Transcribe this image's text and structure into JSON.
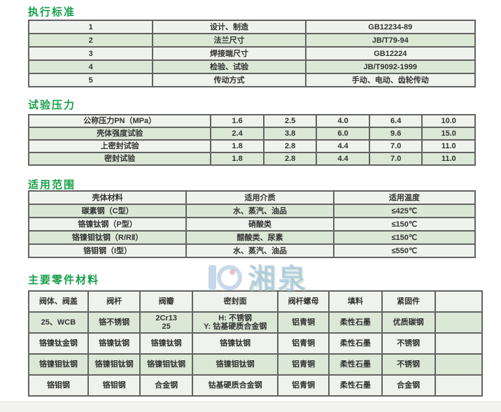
{
  "watermark": {
    "text": "湘泉",
    "logo": "brand-circle-logo"
  },
  "colors": {
    "title_green": "#17a04a",
    "row_green": "#dbe8d6",
    "row_light": "#f0f2ed",
    "border": "#636363",
    "watermark_blue": "#8bb0d1"
  },
  "sections": {
    "standards": {
      "title": "执行标准",
      "table": {
        "widths": [
          27.8,
          34.2,
          38
        ],
        "rows": [
          [
            "1",
            "设计、制造",
            "GB12234-89"
          ],
          [
            "2",
            "法兰尺寸",
            "JB/T79-94"
          ],
          [
            "3",
            "焊接端尺寸",
            "GB12224"
          ],
          [
            "4",
            "检验、试验",
            "JB/T9092-1999"
          ],
          [
            "5",
            "传动方式",
            "手动、电动、齿轮传动"
          ]
        ]
      }
    },
    "pressure": {
      "title": "试验压力",
      "table": {
        "widths": [
          40.8,
          11.84,
          11.84,
          11.84,
          11.84,
          11.84
        ],
        "rows": [
          [
            "公称压力PN（MPa）",
            "1.6",
            "2.5",
            "4.0",
            "6.4",
            "10.0"
          ],
          [
            "壳体强度试验",
            "2.4",
            "3.8",
            "6.0",
            "9.6",
            "15.0"
          ],
          [
            "上密封试验",
            "1.8",
            "2.8",
            "4.4",
            "7.0",
            "11.0"
          ],
          [
            "密封试验",
            "1.8",
            "2.8",
            "4.4",
            "7.0",
            "11.0"
          ]
        ]
      }
    },
    "application": {
      "title": "适用范围",
      "table": {
        "widths": [
          35.3,
          33,
          31.7
        ],
        "rows": [
          [
            "壳体材料",
            "适用介质",
            "适用温度"
          ],
          [
            "碳素钢（C型）",
            "水、蒸汽、油品",
            "≤425℃"
          ],
          [
            "铬镍钛钢（P型）",
            "硝酸类",
            "≤150℃"
          ],
          [
            "铬镍钼钛钢（R/RⅡ）",
            "醋酸类、尿素",
            "≤150℃"
          ],
          [
            "铬钼钢（I型）",
            "水、蒸汽、油品",
            "≤550℃"
          ]
        ]
      }
    },
    "materials": {
      "title": "主要零件材料",
      "table": {
        "widths": [
          13.1,
          11.5,
          11.5,
          18.9,
          11.2,
          11.7,
          11.7,
          10.4
        ],
        "rows": [
          [
            "阀体、阀盖",
            "阀杆",
            "阀瓣",
            "密封面",
            "阀杆螺母",
            "填料",
            "紧固件",
            ""
          ],
          [
            "25、WCB",
            "铬不锈钢",
            "2Cr13\n25",
            "H: 不锈钢\nY: 钴基硬质合金钢",
            "铝青铜",
            "柔性石墨",
            "优质碳钢",
            ""
          ],
          [
            "铬镍钛金钢",
            "铬镍钛钢",
            "铬镍钛钢",
            "铬镍钛钢",
            "铝青铜",
            "柔性石墨",
            "不锈钢",
            ""
          ],
          [
            "铬镍钼钛钢",
            "铬镍钼钛钢",
            "铬镍钼钛钢",
            "铬镍钼钛钢",
            "铝青铜",
            "柔性石墨",
            "不锈钢",
            ""
          ],
          [
            "铬钼钢",
            "铬钼钢",
            "合金钢",
            "钴基硬质合金钢",
            "铝青铜",
            "柔性石墨",
            "合金钢",
            ""
          ]
        ]
      }
    }
  }
}
